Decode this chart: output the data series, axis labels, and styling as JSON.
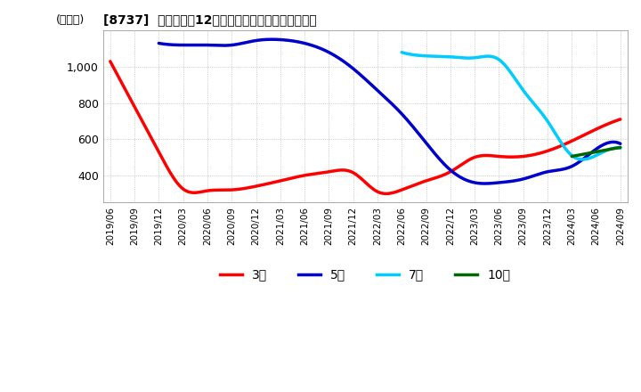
{
  "title": "[8737]  当期純利益12か月移動合計の標準偏差の推移",
  "ylabel": "(百万円)",
  "ylim": [
    250,
    1200
  ],
  "yticks": [
    400,
    600,
    800,
    1000
  ],
  "background_color": "#ffffff",
  "plot_bg_color": "#ffffff",
  "grid_color": "#aaaaaa",
  "x_labels": [
    "2019/06",
    "2019/09",
    "2019/12",
    "2020/03",
    "2020/06",
    "2020/09",
    "2020/12",
    "2021/03",
    "2021/06",
    "2021/09",
    "2021/12",
    "2022/03",
    "2022/06",
    "2022/09",
    "2022/12",
    "2023/03",
    "2023/06",
    "2023/09",
    "2023/12",
    "2024/03",
    "2024/06",
    "2024/09"
  ],
  "series": {
    "3年": {
      "color": "#ff0000",
      "data": [
        [
          0,
          1030
        ],
        [
          1,
          780
        ],
        [
          2,
          530
        ],
        [
          3,
          325
        ],
        [
          4,
          315
        ],
        [
          5,
          320
        ],
        [
          6,
          340
        ],
        [
          7,
          370
        ],
        [
          8,
          400
        ],
        [
          9,
          420
        ],
        [
          10,
          415
        ],
        [
          11,
          310
        ],
        [
          12,
          320
        ],
        [
          13,
          370
        ],
        [
          14,
          420
        ],
        [
          15,
          500
        ],
        [
          16,
          505
        ],
        [
          17,
          505
        ],
        [
          18,
          535
        ],
        [
          19,
          590
        ],
        [
          20,
          655
        ],
        [
          21,
          710
        ]
      ]
    },
    "5年": {
      "color": "#0000cc",
      "data": [
        [
          2,
          1130
        ],
        [
          3,
          1120
        ],
        [
          4,
          1120
        ],
        [
          5,
          1120
        ],
        [
          6,
          1145
        ],
        [
          7,
          1150
        ],
        [
          8,
          1130
        ],
        [
          9,
          1080
        ],
        [
          10,
          990
        ],
        [
          11,
          870
        ],
        [
          12,
          740
        ],
        [
          13,
          580
        ],
        [
          14,
          430
        ],
        [
          15,
          360
        ],
        [
          16,
          360
        ],
        [
          17,
          380
        ],
        [
          18,
          420
        ],
        [
          19,
          450
        ],
        [
          20,
          545
        ],
        [
          21,
          575
        ]
      ]
    },
    "7年": {
      "color": "#00ccff",
      "data": [
        [
          12,
          1080
        ],
        [
          13,
          1060
        ],
        [
          14,
          1055
        ],
        [
          15,
          1050
        ],
        [
          16,
          1040
        ],
        [
          17,
          870
        ],
        [
          18,
          700
        ],
        [
          19,
          510
        ],
        [
          20,
          510
        ],
        [
          21,
          550
        ]
      ]
    },
    "10年": {
      "color": "#006600",
      "data": [
        [
          19,
          505
        ],
        [
          20,
          530
        ],
        [
          21,
          555
        ]
      ]
    }
  },
  "legend": {
    "3年": "#ff0000",
    "5年": "#0000cc",
    "7年": "#00ccff",
    "10年": "#006600"
  }
}
